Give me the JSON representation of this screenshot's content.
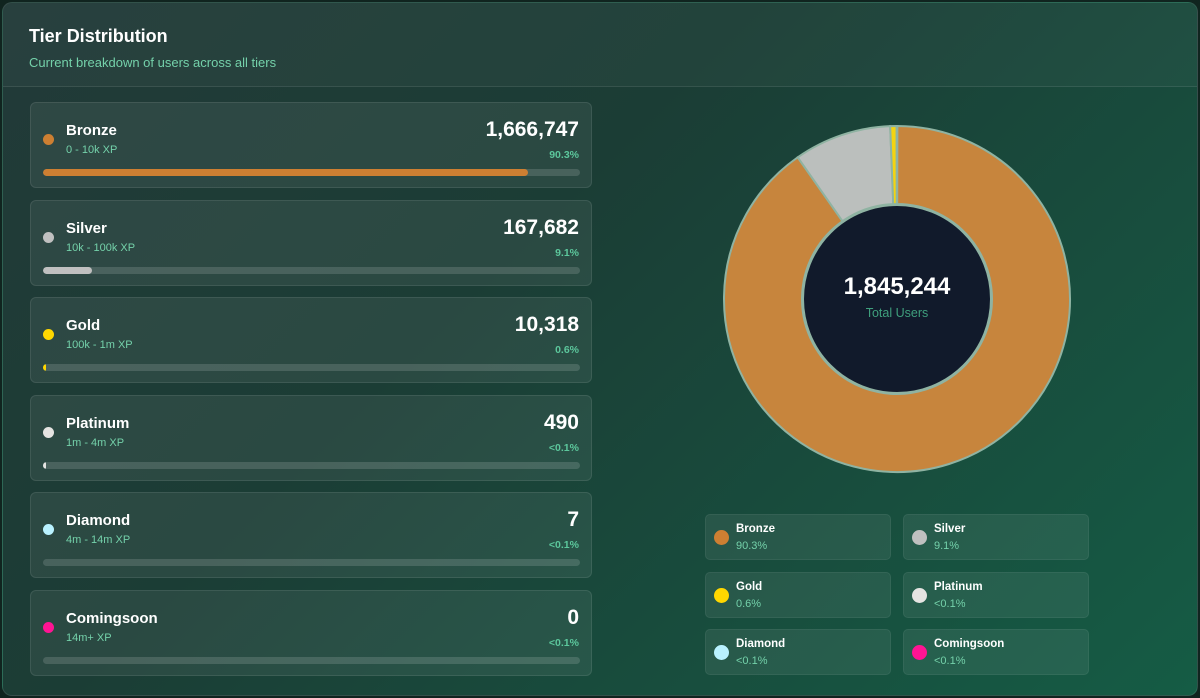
{
  "header": {
    "title": "Tier Distribution",
    "subtitle": "Current breakdown of users across all tiers"
  },
  "tiers": [
    {
      "name": "Bronze",
      "range": "0 - 10k XP",
      "count": "1,666,747",
      "pct": "90.3%",
      "fraction": 0.903,
      "color": "#cd7f32"
    },
    {
      "name": "Silver",
      "range": "10k - 100k XP",
      "count": "167,682",
      "pct": "9.1%",
      "fraction": 0.091,
      "color": "#c0c0c0"
    },
    {
      "name": "Gold",
      "range": "100k - 1m XP",
      "count": "10,318",
      "pct": "0.6%",
      "fraction": 0.006,
      "color": "#ffd700"
    },
    {
      "name": "Platinum",
      "range": "1m - 4m XP",
      "count": "490",
      "pct": "<0.1%",
      "fraction": 0.0003,
      "color": "#e5e4e2"
    },
    {
      "name": "Diamond",
      "range": "4m - 14m XP",
      "count": "7",
      "pct": "<0.1%",
      "fraction": 0.0,
      "color": "#b9f2ff"
    },
    {
      "name": "Comingsoon",
      "range": "14m+ XP",
      "count": "0",
      "pct": "<0.1%",
      "fraction": 0.0,
      "color": "#ff1493"
    }
  ],
  "donut": {
    "total_value": "1,845,244",
    "total_label": "Total Users",
    "stroke_color": "#8fb3a2",
    "center_color": "#111a2b"
  },
  "legend": [
    {
      "name": "Bronze",
      "pct": "90.3%",
      "color": "#cd7f32"
    },
    {
      "name": "Silver",
      "pct": "9.1%",
      "color": "#c0c0c0"
    },
    {
      "name": "Gold",
      "pct": "0.6%",
      "color": "#ffd700"
    },
    {
      "name": "Platinum",
      "pct": "<0.1%",
      "color": "#e5e4e2"
    },
    {
      "name": "Diamond",
      "pct": "<0.1%",
      "color": "#b9f2ff"
    },
    {
      "name": "Comingsoon",
      "pct": "<0.1%",
      "color": "#ff1493"
    }
  ]
}
